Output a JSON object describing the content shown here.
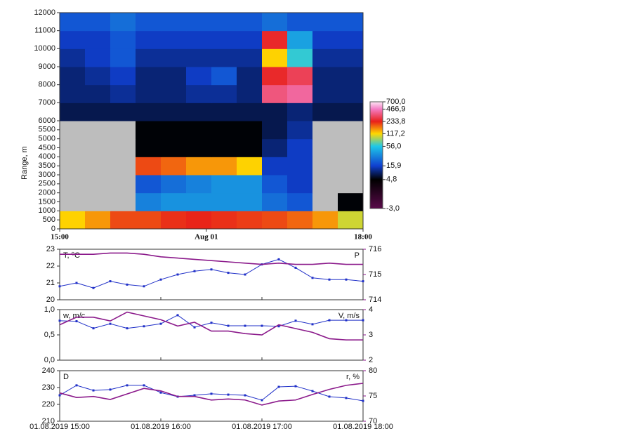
{
  "chart_data": [
    {
      "type": "heatmap",
      "ylabel": "Range, m",
      "x": [
        15,
        15.25,
        15.5,
        15.75,
        16,
        16.25,
        16.5,
        16.75,
        17,
        17.25,
        17.5,
        17.75
      ],
      "y": [
        0,
        1000,
        2000,
        3000,
        4000,
        5000,
        6000,
        7000,
        8000,
        9000,
        10000,
        11000
      ],
      "z": [
        [
          120,
          150,
          200,
          200,
          220,
          230,
          220,
          210,
          200,
          180,
          150,
          100
        ],
        [
          null,
          null,
          null,
          30,
          35,
          35,
          35,
          35,
          25,
          20,
          null,
          5
        ],
        [
          null,
          null,
          null,
          20,
          25,
          30,
          35,
          35,
          20,
          15,
          null,
          null
        ],
        [
          null,
          null,
          null,
          200,
          180,
          150,
          150,
          120,
          15,
          15,
          null,
          null
        ],
        [
          null,
          null,
          null,
          5,
          5,
          5,
          5,
          5,
          10,
          15,
          null,
          null
        ],
        [
          null,
          null,
          null,
          5,
          5,
          5,
          5,
          5,
          8,
          12,
          null,
          null
        ],
        [
          8,
          8,
          8,
          8,
          8,
          8,
          8,
          8,
          8,
          10,
          8,
          8
        ],
        [
          10,
          10,
          12,
          10,
          10,
          12,
          12,
          10,
          350,
          400,
          10,
          10
        ],
        [
          10,
          12,
          15,
          10,
          10,
          15,
          20,
          10,
          250,
          300,
          10,
          10
        ],
        [
          12,
          15,
          20,
          12,
          12,
          12,
          12,
          12,
          120,
          60,
          12,
          12
        ],
        [
          15,
          15,
          20,
          15,
          15,
          15,
          15,
          15,
          250,
          40,
          15,
          15
        ],
        [
          20,
          20,
          25,
          20,
          20,
          20,
          20,
          20,
          25,
          20,
          20,
          20
        ]
      ],
      "xlim": [
        15,
        18
      ],
      "ylim": [
        0,
        12000
      ],
      "xticks": [
        {
          "value": 15,
          "label": "15:00"
        },
        {
          "value": 16.45,
          "label": "Aug 01"
        },
        {
          "value": 18,
          "label": "18:00"
        }
      ],
      "yticks": [
        0,
        500,
        1000,
        1500,
        2000,
        2500,
        3000,
        3500,
        4000,
        4500,
        5000,
        5500,
        6000,
        7000,
        8000,
        9000,
        10000,
        11000,
        12000
      ],
      "colorbar_ticks": [
        {
          "value": 700,
          "label": "700,0"
        },
        {
          "value": 466.9,
          "label": "466,9"
        },
        {
          "value": 233.8,
          "label": "233,8"
        },
        {
          "value": 117.2,
          "label": "117,2"
        },
        {
          "value": 56,
          "label": "56,0"
        },
        {
          "value": 15.9,
          "label": "15,9"
        },
        {
          "value": 4.8,
          "label": "4,8"
        },
        {
          "value": -3,
          "label": "-3,0"
        }
      ],
      "colorscale": [
        "#fde6f5",
        "#f47cc4",
        "#e8201a",
        "#ffd800",
        "#1ec8e8",
        "#1040d0",
        "#000000",
        "#5a0a4a"
      ],
      "missing_color": "#bdbdbd"
    },
    {
      "type": "line",
      "ylabel": "T, ⁰C",
      "y2label": "P",
      "x": [
        15,
        15.1667,
        15.3333,
        15.5,
        15.6667,
        15.8333,
        16,
        16.1667,
        16.3333,
        16.5,
        16.6667,
        16.8333,
        17,
        17.1667,
        17.3333,
        17.5,
        17.6667,
        17.8333,
        18
      ],
      "xlim": [
        15,
        18
      ],
      "ylim": [
        20,
        23
      ],
      "yticks": [
        20,
        21,
        22,
        23
      ],
      "y2lim": [
        714,
        716
      ],
      "y2ticks": [
        714,
        715,
        716
      ],
      "series": [
        {
          "name": "T",
          "color": "#2030c8",
          "markers": true,
          "values": [
            20.8,
            21.0,
            20.7,
            21.1,
            20.9,
            20.8,
            21.2,
            21.5,
            21.7,
            21.8,
            21.6,
            21.5,
            22.1,
            22.4,
            21.9,
            21.3,
            21.2,
            21.2,
            21.1
          ]
        },
        {
          "name": "P",
          "color": "#8b1a8b",
          "axis": "y2",
          "markers": false,
          "values": [
            715.8,
            715.8,
            715.8,
            715.85,
            715.85,
            715.8,
            715.7,
            715.65,
            715.6,
            715.55,
            715.5,
            715.45,
            715.4,
            715.45,
            715.4,
            715.4,
            715.45,
            715.4,
            715.4
          ]
        }
      ]
    },
    {
      "type": "line",
      "ylabel": "w, m/c",
      "y2label": "V, m/s",
      "x": [
        15,
        15.1667,
        15.3333,
        15.5,
        15.6667,
        15.8333,
        16,
        16.1667,
        16.3333,
        16.5,
        16.6667,
        16.8333,
        17,
        17.1667,
        17.3333,
        17.5,
        17.6667,
        17.8333,
        18
      ],
      "xlim": [
        15,
        18
      ],
      "ylim": [
        0,
        1
      ],
      "yticks": [
        {
          "value": 0,
          "label": "0,0"
        },
        {
          "value": 0.5,
          "label": "0,5"
        },
        {
          "value": 1,
          "label": "1,0"
        }
      ],
      "y2lim": [
        2,
        4
      ],
      "y2ticks": [
        2,
        3,
        4
      ],
      "series": [
        {
          "name": "w",
          "color": "#2030c8",
          "markers": true,
          "values": [
            0.78,
            0.77,
            0.63,
            0.72,
            0.63,
            0.67,
            0.72,
            0.89,
            0.65,
            0.74,
            0.68,
            0.68,
            0.68,
            0.67,
            0.78,
            0.71,
            0.79,
            0.79,
            0.79
          ]
        },
        {
          "name": "V",
          "color": "#8b1a8b",
          "axis": "y2",
          "markers": false,
          "values": [
            3.4,
            3.7,
            3.7,
            3.55,
            3.9,
            3.75,
            3.6,
            3.35,
            3.5,
            3.15,
            3.15,
            3.05,
            3.0,
            3.4,
            3.25,
            3.1,
            2.85,
            2.8,
            2.8
          ]
        }
      ]
    },
    {
      "type": "line",
      "ylabel": "D",
      "y2label": "r, %",
      "x": [
        15,
        15.1667,
        15.3333,
        15.5,
        15.6667,
        15.8333,
        16,
        16.1667,
        16.3333,
        16.5,
        16.6667,
        16.8333,
        17,
        17.1667,
        17.3333,
        17.5,
        17.6667,
        17.8333,
        18
      ],
      "xlim": [
        15,
        18
      ],
      "ylim": [
        210,
        240
      ],
      "yticks": [
        210,
        220,
        230,
        240
      ],
      "y2lim": [
        70,
        80
      ],
      "y2ticks": [
        70,
        75,
        80
      ],
      "xticks": [
        {
          "value": 15,
          "label": "01.08.2019 15:00"
        },
        {
          "value": 16,
          "label": "01.08.2019 16:00"
        },
        {
          "value": 17,
          "label": "01.08.2019 17:00"
        },
        {
          "value": 18,
          "label": "01.08.2019 18:00"
        }
      ],
      "series": [
        {
          "name": "D",
          "color": "#2030c8",
          "markers": true,
          "values": [
            225.4,
            231.3,
            228.3,
            228.8,
            231.3,
            231.3,
            227,
            224.6,
            225.4,
            226.3,
            225.8,
            225.4,
            222.5,
            230.4,
            230.8,
            227.9,
            224.6,
            223.8,
            222.1
          ]
        },
        {
          "name": "r",
          "color": "#8b1a8b",
          "axis": "y2",
          "markers": false,
          "values": [
            75.6,
            74.7,
            74.9,
            74.3,
            75.4,
            76.5,
            76,
            74.9,
            74.9,
            74.2,
            74.4,
            74.2,
            73.2,
            74,
            74.2,
            75.3,
            76.3,
            77.1,
            77.5
          ]
        }
      ]
    }
  ]
}
